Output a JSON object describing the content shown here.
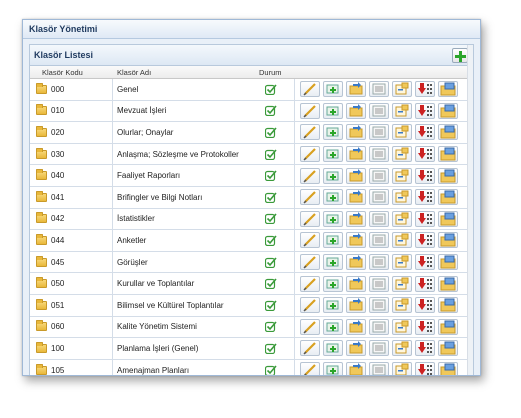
{
  "window": {
    "title": "Klasör Yönetimi"
  },
  "panel": {
    "title": "Klasör Listesi"
  },
  "columns": {
    "code": "Klasör Kodu",
    "name": "Klasör Adı",
    "status": "Durum"
  },
  "colors": {
    "accent": "#1f3a5f",
    "add_green": "#2aa52a",
    "check_green": "#3a9a3a",
    "delete_red": "#cc2222"
  },
  "rows": [
    {
      "code": "000",
      "name": "Genel"
    },
    {
      "code": "010",
      "name": "Mevzuat İşleri"
    },
    {
      "code": "020",
      "name": "Olurlar; Onaylar"
    },
    {
      "code": "030",
      "name": "Anlaşma; Sözleşme ve Protokoller"
    },
    {
      "code": "040",
      "name": "Faaliyet Raporları"
    },
    {
      "code": "041",
      "name": "Brifingler ve Bilgi Notları"
    },
    {
      "code": "042",
      "name": "İstatistikler"
    },
    {
      "code": "044",
      "name": "Anketler"
    },
    {
      "code": "045",
      "name": "Görüşler"
    },
    {
      "code": "050",
      "name": "Kurullar ve Toplantılar"
    },
    {
      "code": "051",
      "name": "Bilimsel ve Kültürel Toplantılar"
    },
    {
      "code": "060",
      "name": "Kalite Yönetim Sistemi"
    },
    {
      "code": "100",
      "name": "Planlama İşleri (Genel)"
    },
    {
      "code": "105",
      "name": "Amenajman Planları"
    }
  ],
  "row_actions": [
    "edit-icon",
    "add-subfolder-icon",
    "move-folder-icon",
    "list-icon",
    "folder-tree-icon",
    "move-down-icon",
    "archive-folder-icon"
  ]
}
